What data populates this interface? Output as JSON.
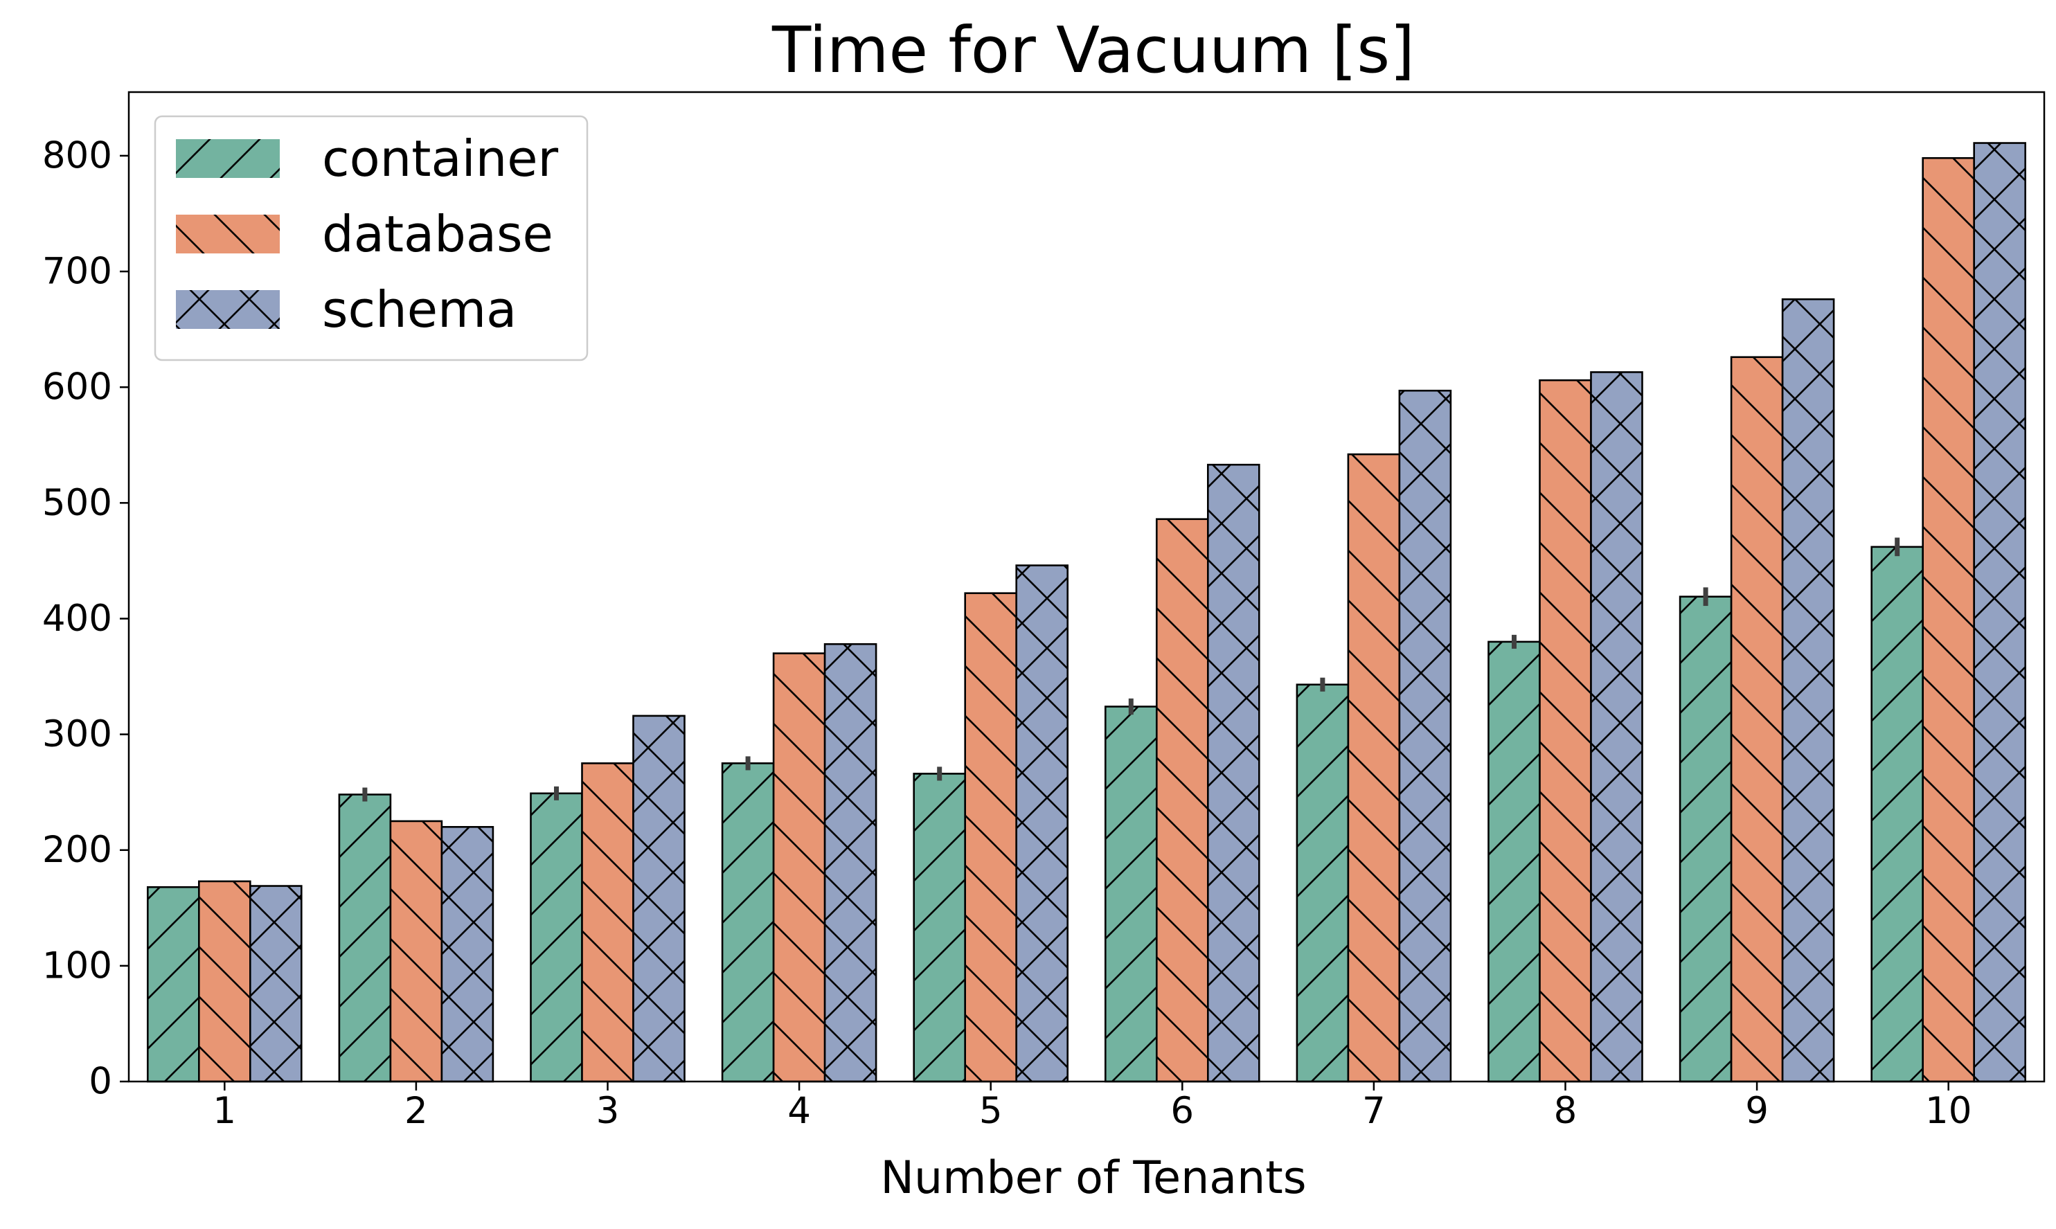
{
  "chart_data": {
    "type": "bar",
    "title": "Time for Vacuum [s]",
    "xlabel": "Number of Tenants",
    "ylabel": "",
    "categories": [
      "1",
      "2",
      "3",
      "4",
      "5",
      "6",
      "7",
      "8",
      "9",
      "10"
    ],
    "ylim": [
      0,
      855
    ],
    "yticks": [
      0,
      100,
      200,
      300,
      400,
      500,
      600,
      700,
      800
    ],
    "grid": false,
    "legend_position": "top-left",
    "series": [
      {
        "name": "container",
        "color": "#73b3a0",
        "hatch": "forward-slash",
        "values": [
          168,
          248,
          249,
          275,
          266,
          324,
          343,
          380,
          419,
          462
        ],
        "errors": [
          0,
          6,
          6,
          6,
          6,
          7,
          6,
          6,
          8,
          8
        ]
      },
      {
        "name": "database",
        "color": "#e89674",
        "hatch": "back-slash",
        "values": [
          173,
          225,
          275,
          370,
          422,
          486,
          542,
          606,
          626,
          798
        ],
        "errors": [
          0,
          0,
          0,
          0,
          0,
          0,
          0,
          0,
          0,
          0
        ]
      },
      {
        "name": "schema",
        "color": "#93a2c2",
        "hatch": "cross",
        "values": [
          169,
          220,
          316,
          378,
          446,
          533,
          597,
          613,
          676,
          811
        ],
        "errors": [
          0,
          0,
          0,
          0,
          0,
          0,
          0,
          0,
          0,
          0
        ]
      }
    ]
  }
}
